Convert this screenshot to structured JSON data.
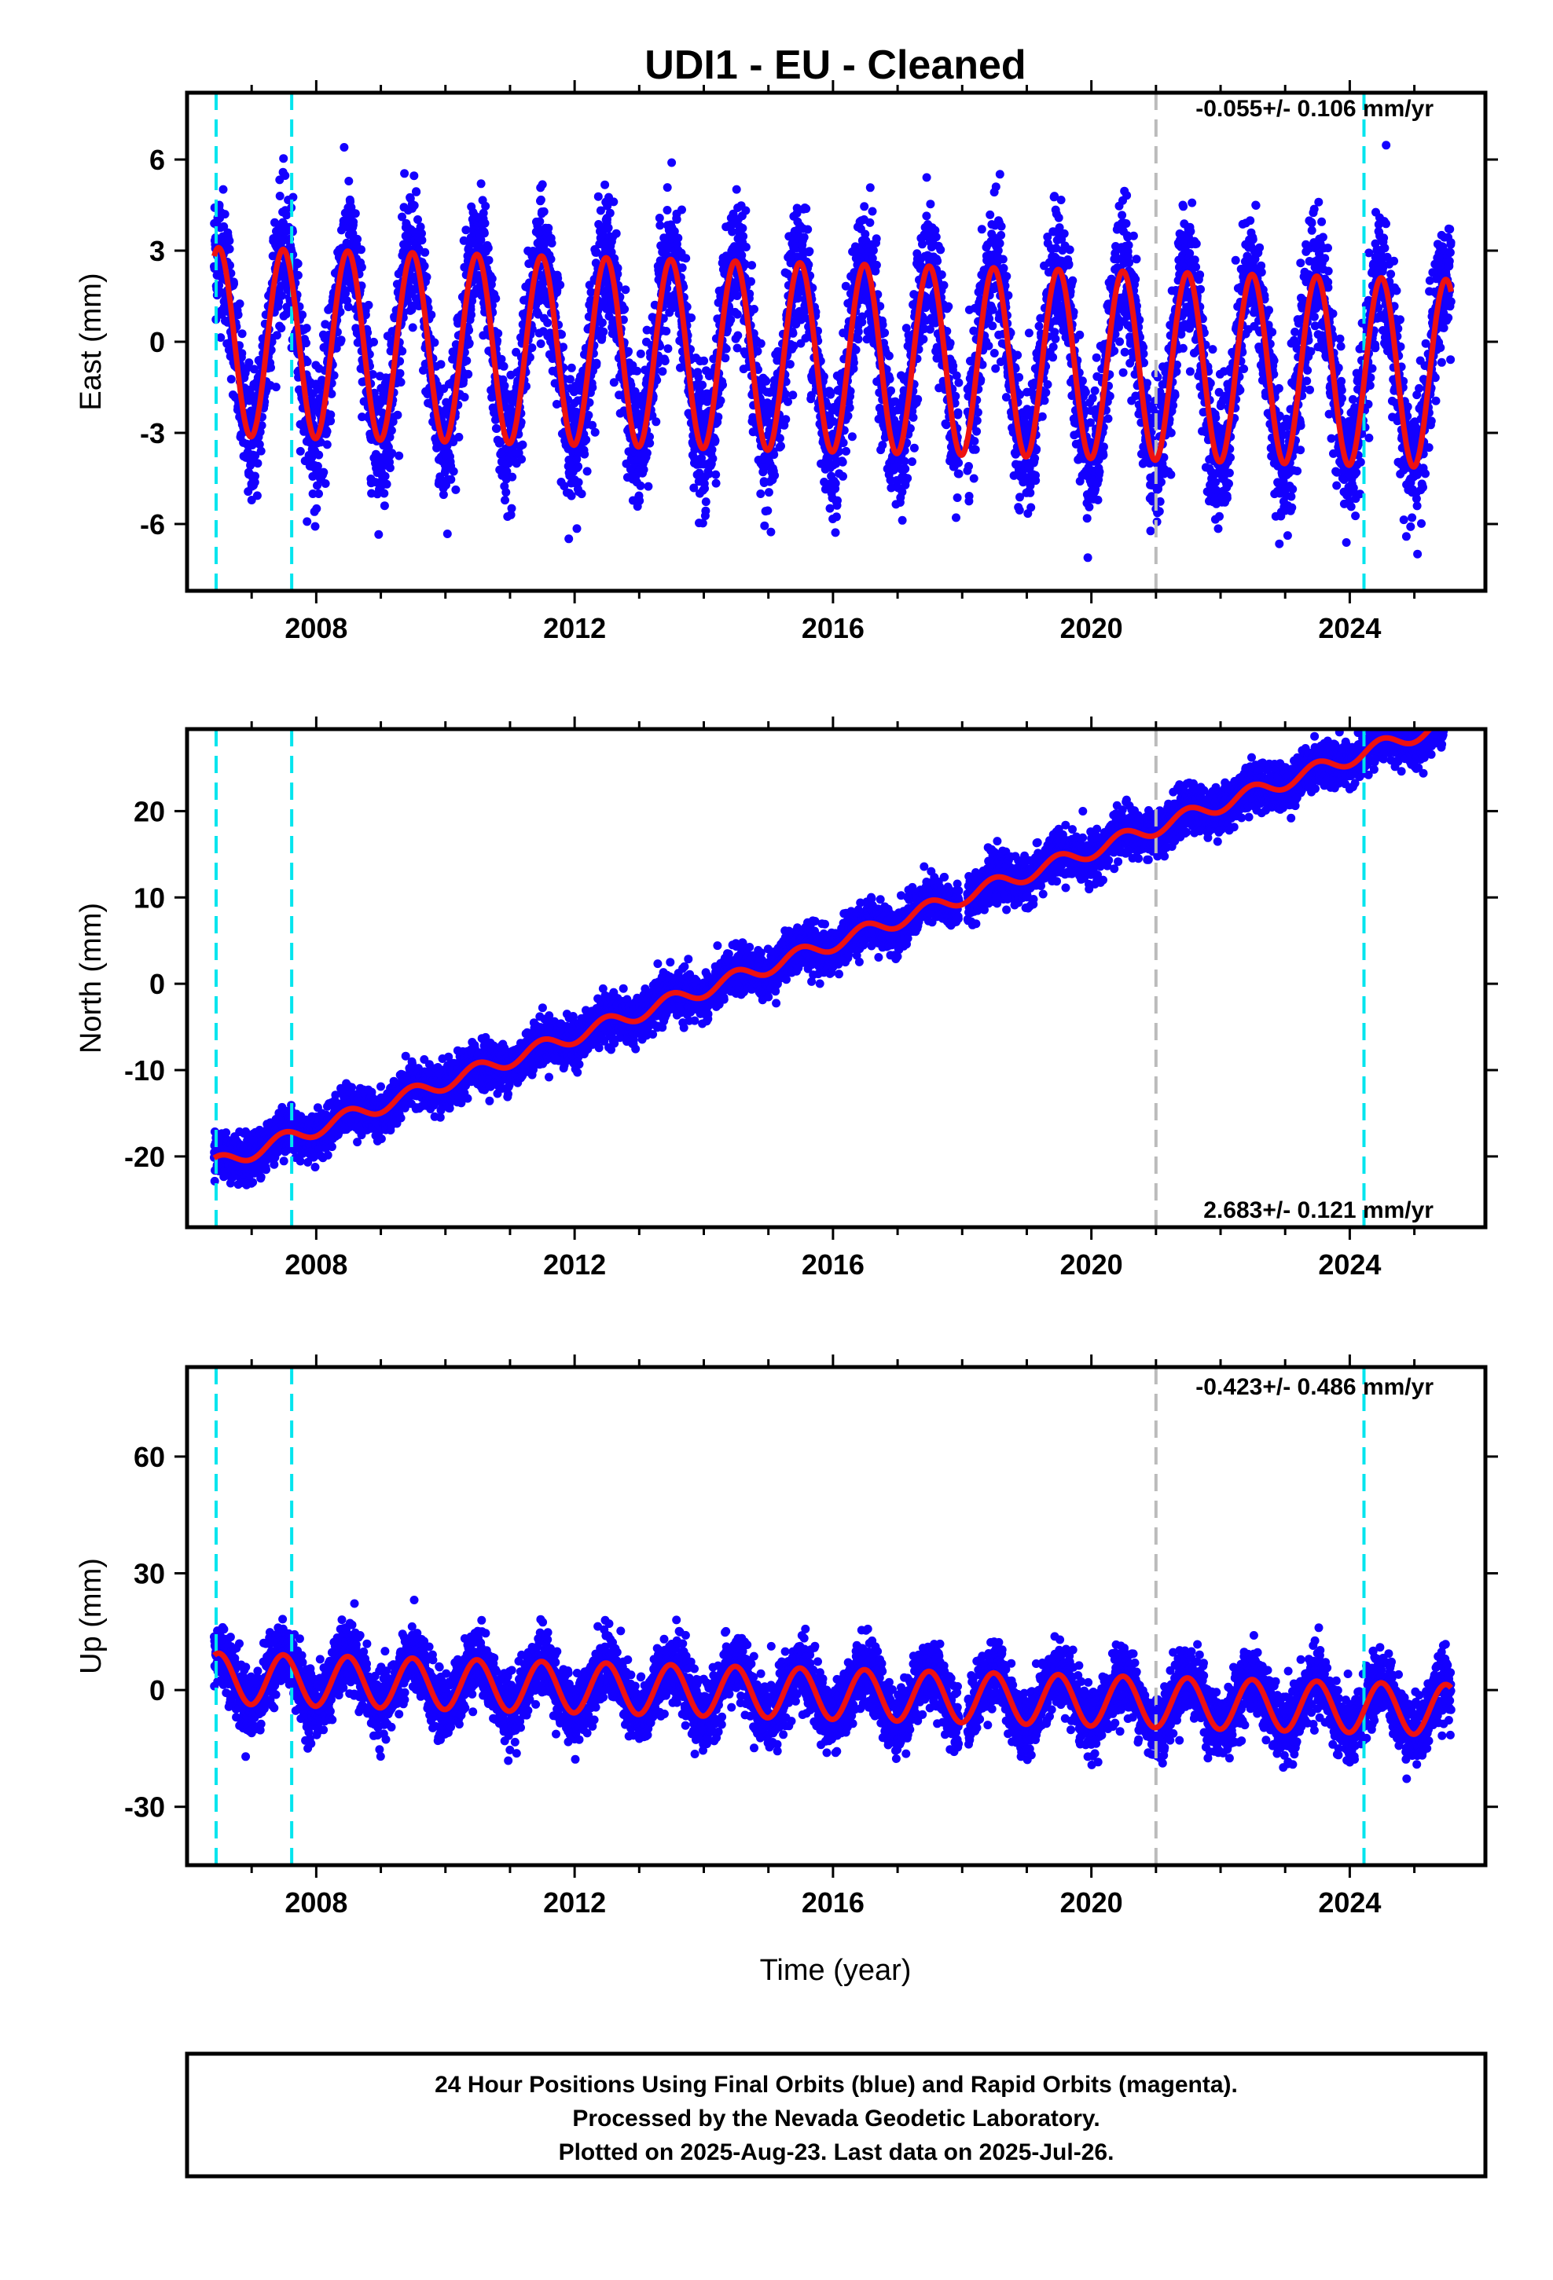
{
  "title": "UDI1  - EU - Cleaned",
  "xlabel": "Time (year)",
  "footer": {
    "lines": [
      "24 Hour Positions Using Final Orbits (blue) and Rapid Orbits (magenta).",
      "Processed by the Nevada Geodetic Laboratory.",
      "Plotted on 2025-Aug-23. Last data on 2025-Jul-26."
    ]
  },
  "colors": {
    "data_points": "#1400ff",
    "fit_line": "#ee1111",
    "equipment_change": "#00e5ee",
    "other_event": "#bbbbbb"
  },
  "chart_data": [
    {
      "type": "scatter",
      "name": "east",
      "ylabel": "East (mm)",
      "rate_label": "-0.055+/- 0.106 mm/yr",
      "xlim": [
        2006.0,
        2026.1
      ],
      "ylim": [
        -8.2,
        8.2
      ],
      "yticks": [
        -6,
        -3,
        0,
        3,
        6
      ],
      "xticks": [
        2008,
        2012,
        2016,
        2020,
        2024
      ],
      "data_start": 2006.42,
      "data_end": 2025.57,
      "seasonal_amplitude_mm": 3.1,
      "scatter_mm": 1.1,
      "trend_mm_per_yr": -0.055,
      "offset_mm": 0.0,
      "event_lines": [
        {
          "x": 2006.45,
          "kind": "equipment"
        },
        {
          "x": 2007.62,
          "kind": "equipment"
        },
        {
          "x": 2021.0,
          "kind": "other"
        },
        {
          "x": 2024.22,
          "kind": "equipment"
        }
      ]
    },
    {
      "type": "scatter",
      "name": "north",
      "ylabel": "North (mm)",
      "rate_label": "2.683+/- 0.121 mm/yr",
      "xlim": [
        2006.0,
        2026.1
      ],
      "ylim": [
        -28.2,
        29.5
      ],
      "yticks": [
        -20,
        -10,
        0,
        10,
        20
      ],
      "xticks": [
        2008,
        2012,
        2016,
        2020,
        2024
      ],
      "data_start": 2006.42,
      "data_end": 2025.57,
      "seasonal_amplitude_mm": 0.9,
      "scatter_mm": 1.3,
      "trend_mm_per_yr": 2.683,
      "offset_mm": -21.0,
      "event_lines": [
        {
          "x": 2006.45,
          "kind": "equipment"
        },
        {
          "x": 2007.62,
          "kind": "equipment"
        },
        {
          "x": 2021.0,
          "kind": "other"
        },
        {
          "x": 2024.22,
          "kind": "equipment"
        }
      ]
    },
    {
      "type": "scatter",
      "name": "up",
      "ylabel": "Up (mm)",
      "rate_label": "-0.423+/- 0.486 mm/yr",
      "xlim": [
        2006.0,
        2026.1
      ],
      "ylim": [
        -45.0,
        83.0
      ],
      "yticks": [
        -30,
        0,
        30,
        60
      ],
      "xticks": [
        2008,
        2012,
        2016,
        2020,
        2024
      ],
      "data_start": 2006.42,
      "data_end": 2025.57,
      "seasonal_amplitude_mm": 6.5,
      "scatter_mm": 4.2,
      "trend_mm_per_yr": -0.423,
      "offset_mm": 3.0,
      "event_lines": [
        {
          "x": 2006.45,
          "kind": "equipment"
        },
        {
          "x": 2007.62,
          "kind": "equipment"
        },
        {
          "x": 2021.0,
          "kind": "other"
        },
        {
          "x": 2024.22,
          "kind": "equipment"
        }
      ]
    }
  ]
}
